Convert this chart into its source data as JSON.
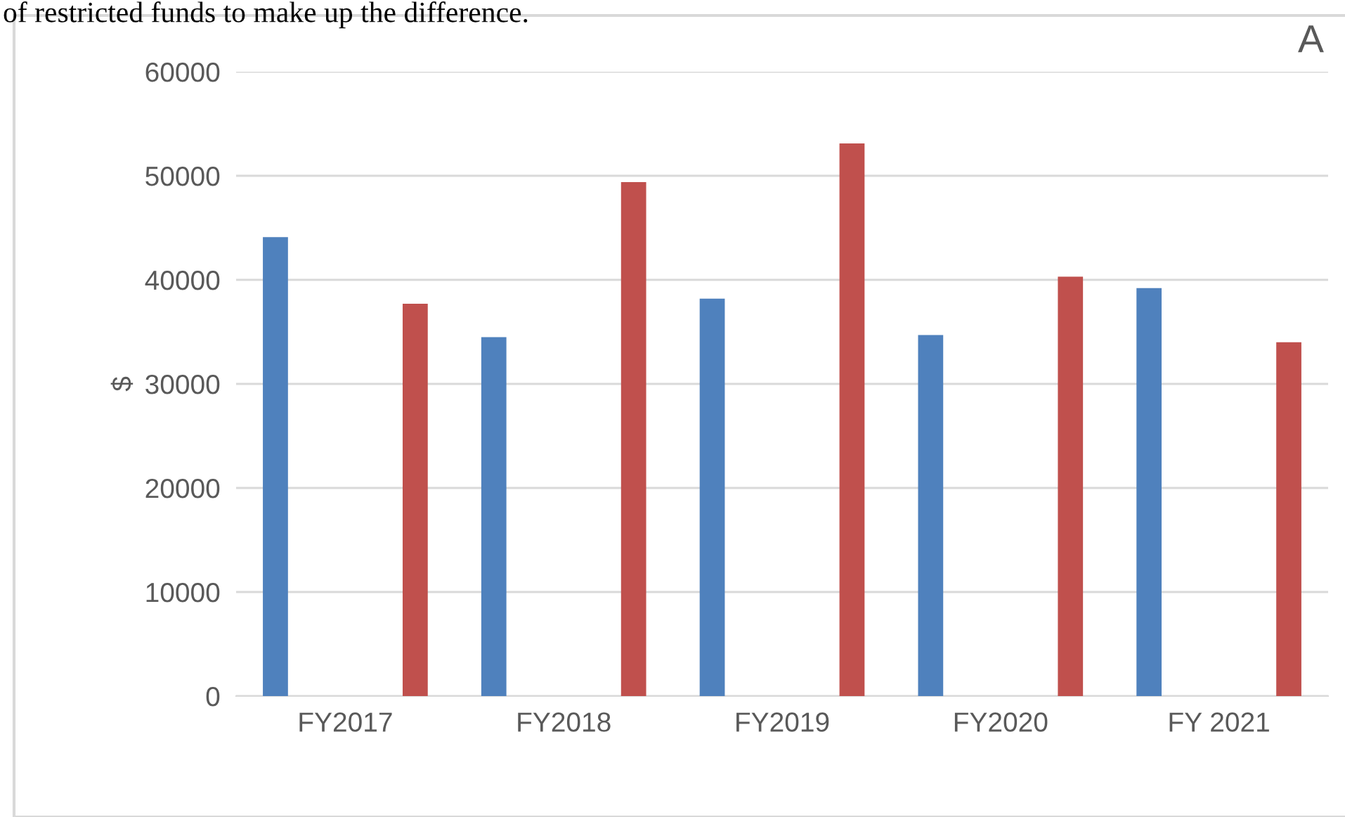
{
  "chart_data": {
    "type": "bar",
    "ylabel": "$",
    "categories": [
      "FY2017",
      "FY2018",
      "FY2019",
      "FY2020",
      "FY 2021"
    ],
    "series": [
      {
        "color": "#4f81bd",
        "values": [
          44100,
          34500,
          38200,
          34700,
          39200
        ]
      },
      {
        "color": "#c0504d",
        "values": [
          37700,
          49400,
          53100,
          40300,
          34000
        ]
      }
    ],
    "ylim": [
      0,
      60000
    ],
    "yticks": [
      0,
      10000,
      20000,
      30000,
      40000,
      50000,
      60000
    ],
    "grid": "y",
    "annotations": [
      "A",
      "of restricted funds to make up the difference."
    ]
  }
}
